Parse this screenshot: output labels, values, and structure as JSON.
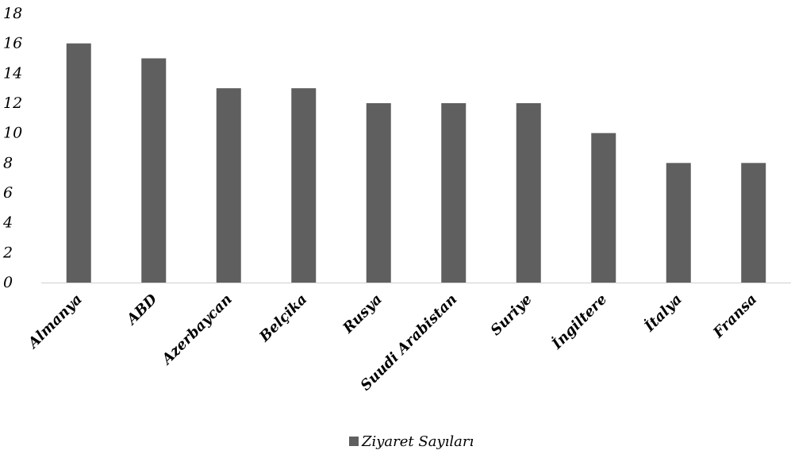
{
  "chart_data": {
    "type": "bar",
    "categories": [
      "Almanya",
      "ABD",
      "Azerbaycan",
      "Belçika",
      "Rusya",
      "Suudi Arabistan",
      "Suriye",
      "İngiltere",
      "İtalya",
      "Fransa"
    ],
    "series": [
      {
        "name": "Ziyaret Sayıları",
        "values": [
          16,
          15,
          13,
          13,
          12,
          12,
          12,
          10,
          8,
          8
        ],
        "color": "#5f5f5f"
      }
    ],
    "yticks": [
      0,
      2,
      4,
      6,
      8,
      10,
      12,
      14,
      16,
      18
    ],
    "ylim": [
      0,
      18
    ],
    "grid": false,
    "legend_position": "bottom"
  }
}
